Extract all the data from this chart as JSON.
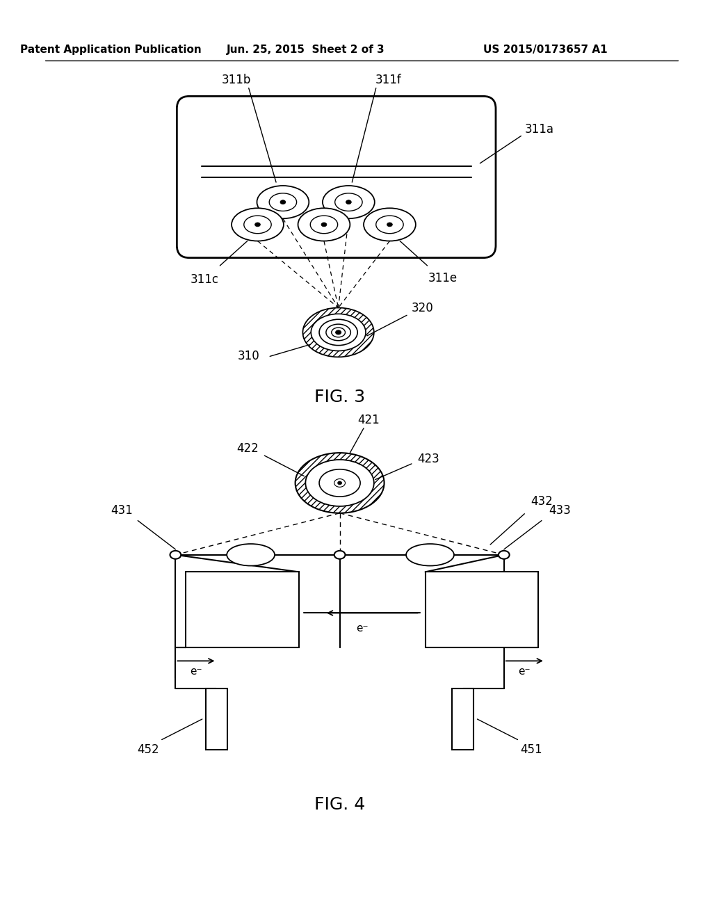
{
  "bg_color": "#ffffff",
  "header_left": "Patent Application Publication",
  "header_mid": "Jun. 25, 2015  Sheet 2 of 3",
  "header_right": "US 2015/0173657 A1"
}
